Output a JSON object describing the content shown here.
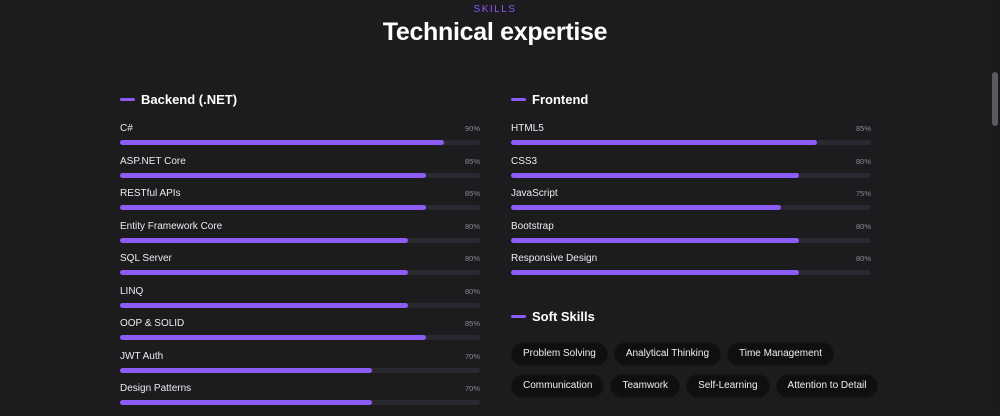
{
  "header": {
    "eyebrow": "SKILLS",
    "title": "Technical expertise"
  },
  "backend": {
    "title": "Backend (.NET)",
    "skills": [
      {
        "name": "C#",
        "percent_label": "90%",
        "value": 90
      },
      {
        "name": "ASP.NET Core",
        "percent_label": "85%",
        "value": 85
      },
      {
        "name": "RESTful APIs",
        "percent_label": "85%",
        "value": 85
      },
      {
        "name": "Entity Framework Core",
        "percent_label": "80%",
        "value": 80
      },
      {
        "name": "SQL Server",
        "percent_label": "80%",
        "value": 80
      },
      {
        "name": "LINQ",
        "percent_label": "80%",
        "value": 80
      },
      {
        "name": "OOP & SOLID",
        "percent_label": "85%",
        "value": 85
      },
      {
        "name": "JWT Auth",
        "percent_label": "70%",
        "value": 70
      },
      {
        "name": "Design Patterns",
        "percent_label": "70%",
        "value": 70
      }
    ]
  },
  "frontend": {
    "title": "Frontend",
    "skills": [
      {
        "name": "HTML5",
        "percent_label": "85%",
        "value": 85
      },
      {
        "name": "CSS3",
        "percent_label": "80%",
        "value": 80
      },
      {
        "name": "JavaScript",
        "percent_label": "75%",
        "value": 75
      },
      {
        "name": "Bootstrap",
        "percent_label": "80%",
        "value": 80
      },
      {
        "name": "Responsive Design",
        "percent_label": "80%",
        "value": 80
      }
    ]
  },
  "soft_skills": {
    "title": "Soft Skills",
    "chips": [
      "Problem Solving",
      "Analytical Thinking",
      "Time Management",
      "Communication",
      "Teamwork",
      "Self-Learning",
      "Attention to Detail"
    ]
  },
  "colors": {
    "accent": "#8b5cf6",
    "background": "#1c1b1e",
    "track": "#2a2830",
    "chip_bg": "#0f0f11"
  }
}
